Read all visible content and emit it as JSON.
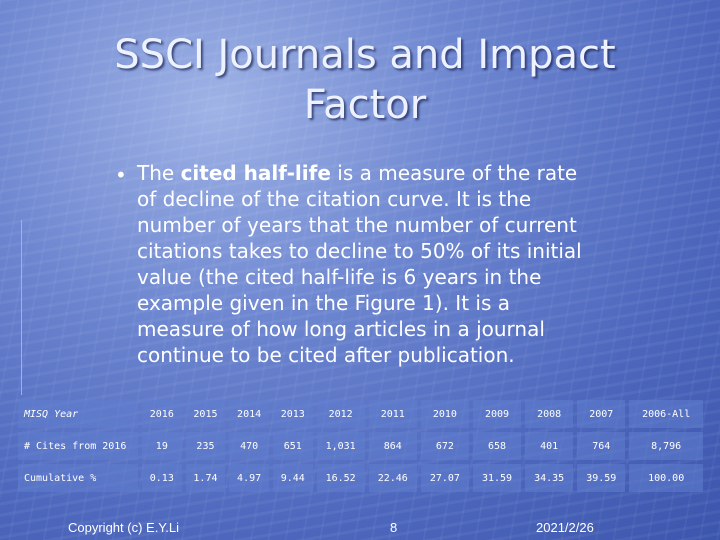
{
  "slide": {
    "title_line1": "SSCI Journals and Impact",
    "title_line2": "Factor",
    "bullet": {
      "pre": "The ",
      "bold": "cited half-life",
      "post": " is a measure of the rate of decline of the citation curve. It is the number of years that the number of current citations takes to decline to 50% of its initial value (the cited half-life is 6 years in the example given in the Figure 1). It is a measure of how long articles in a journal continue to be cited after publication."
    }
  },
  "table": {
    "rows": [
      {
        "label": "MISQ Year",
        "italic": true,
        "values": [
          "2016",
          "2015",
          "2014",
          "2013",
          "2012",
          "2011",
          "2010",
          "2009",
          "2008",
          "2007",
          "2006-All"
        ]
      },
      {
        "label": "# Cites from 2016",
        "italic": false,
        "values": [
          "19",
          "235",
          "470",
          "651",
          "1,031",
          "864",
          "672",
          "658",
          "401",
          "764",
          "8,796"
        ]
      },
      {
        "label": "Cumulative %",
        "italic": false,
        "values": [
          "0.13",
          "1.74",
          "4.97",
          "9.44",
          "16.52",
          "22.46",
          "27.07",
          "31.59",
          "34.35",
          "39.59",
          "100.00"
        ]
      }
    ]
  },
  "footer": {
    "copyright": "Copyright (c) E.Y.Li",
    "page": "8",
    "date": "2021/2/26"
  }
}
